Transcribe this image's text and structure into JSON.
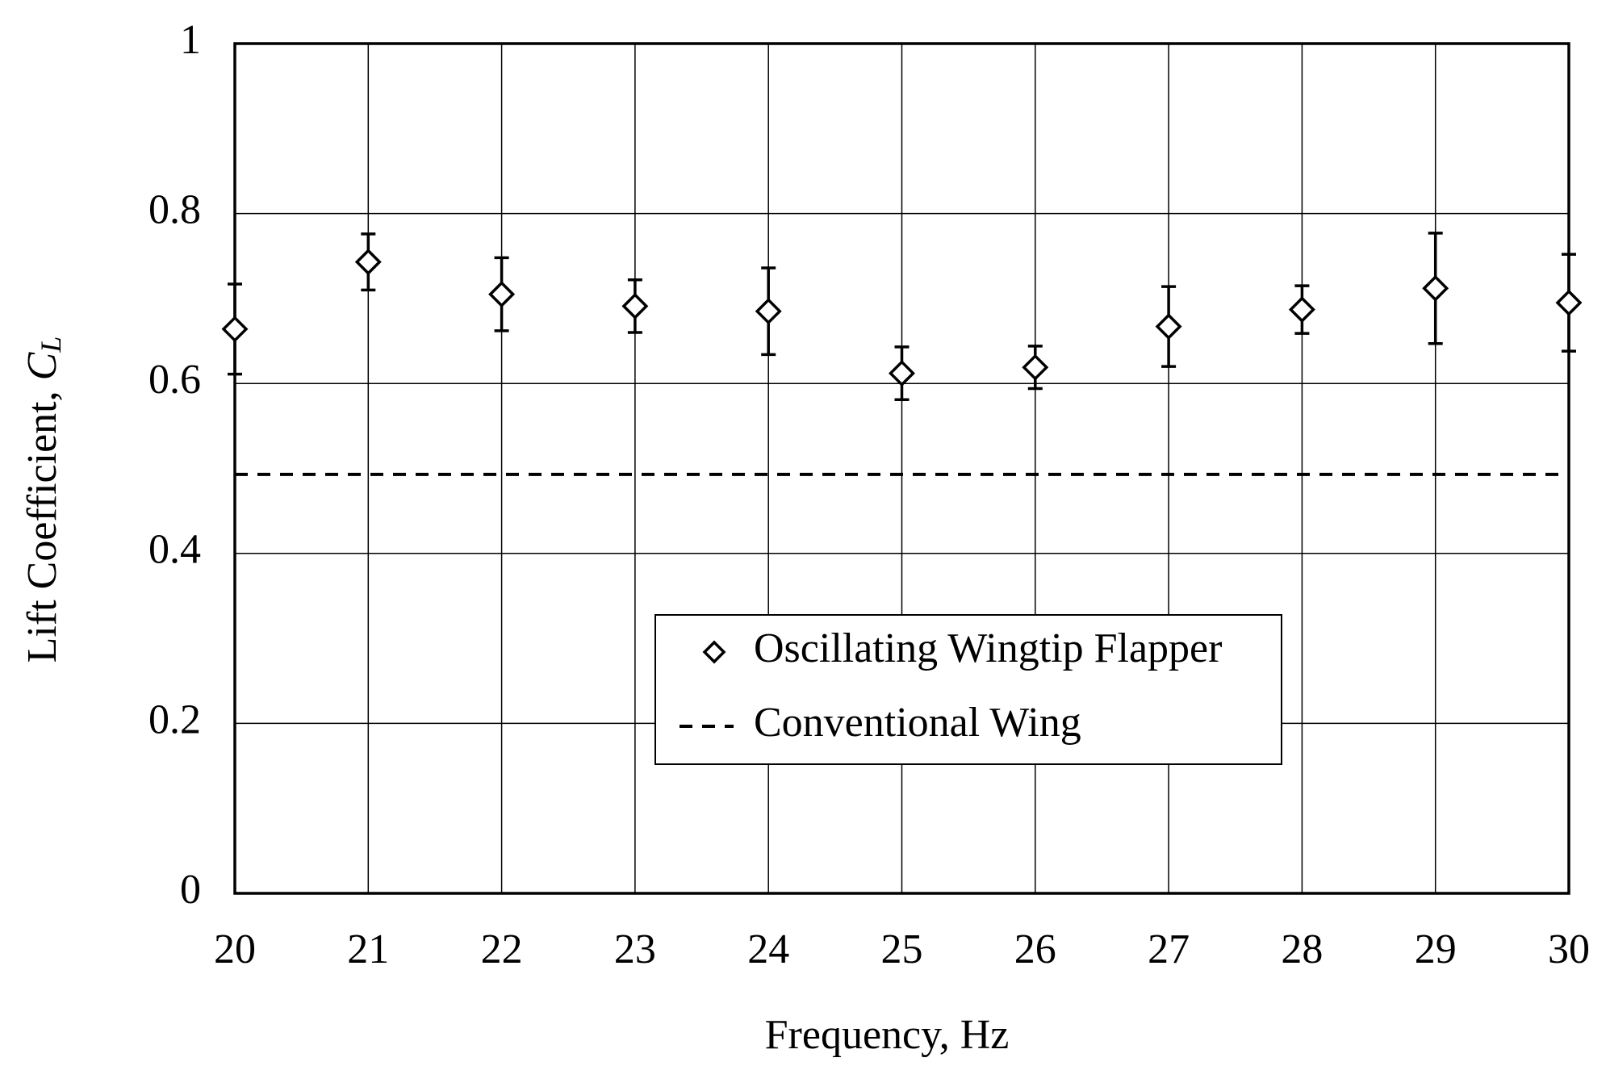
{
  "chart_data": {
    "type": "scatter",
    "x_label": "Frequency, Hz",
    "y_label": {
      "text": "Lift Coefficient, ",
      "symbol": "C",
      "subscript": "L"
    },
    "x": [
      20,
      21,
      22,
      23,
      24,
      25,
      26,
      27,
      28,
      29,
      30
    ],
    "series": [
      {
        "name": "Oscillating Wingtip Flapper",
        "color": "#000000",
        "marker": "diamond",
        "values": [
          0.664,
          0.743,
          0.705,
          0.691,
          0.685,
          0.612,
          0.619,
          0.667,
          0.687,
          0.712,
          0.695
        ],
        "errors": [
          0.053,
          0.033,
          0.043,
          0.031,
          0.051,
          0.031,
          0.025,
          0.047,
          0.028,
          0.065,
          0.057
        ]
      },
      {
        "name": "Conventional Wing",
        "color": "#000000",
        "line_style": "dashed",
        "value": 0.493
      }
    ],
    "xlim": [
      20,
      30
    ],
    "xticks": [
      20,
      21,
      22,
      23,
      24,
      25,
      26,
      27,
      28,
      29,
      30
    ],
    "ylim": [
      0,
      1
    ],
    "yticks": [
      0,
      0.2,
      0.4,
      0.6,
      0.8,
      1
    ],
    "grid": true
  }
}
